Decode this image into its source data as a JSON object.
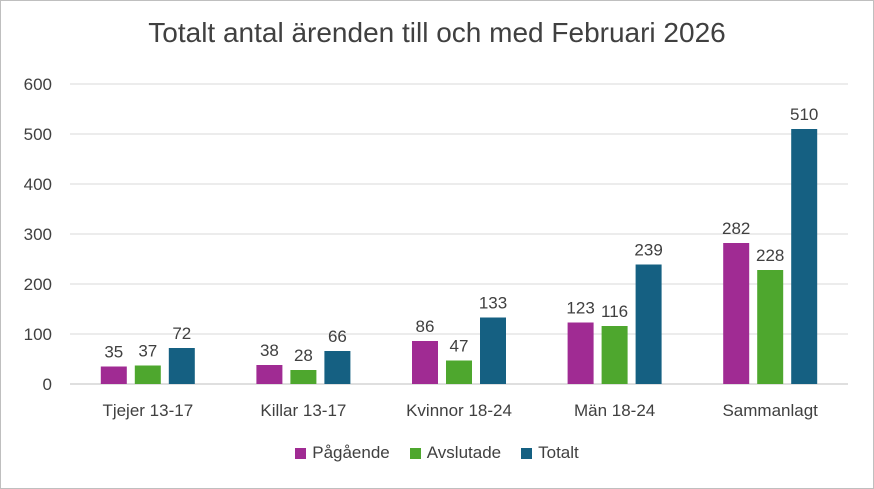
{
  "chart_data": {
    "type": "bar",
    "title": "Totalt antal ärenden till och med Februari 2026",
    "categories": [
      "Tjejer 13-17",
      "Killar 13-17",
      "Kvinnor 18-24",
      "Män 18-24",
      "Sammanlagt"
    ],
    "series": [
      {
        "name": "Pågående",
        "color": "#A02B93",
        "values": [
          35,
          38,
          86,
          123,
          282
        ]
      },
      {
        "name": "Avslutade",
        "color": "#4EA72E",
        "values": [
          37,
          28,
          47,
          116,
          228
        ]
      },
      {
        "name": "Totalt",
        "color": "#156082",
        "values": [
          72,
          66,
          133,
          239,
          510
        ]
      }
    ],
    "ylim": [
      0,
      600
    ],
    "yticks": [
      0,
      100,
      200,
      300,
      400,
      500,
      600
    ],
    "grid": true,
    "legend_position": "bottom"
  }
}
